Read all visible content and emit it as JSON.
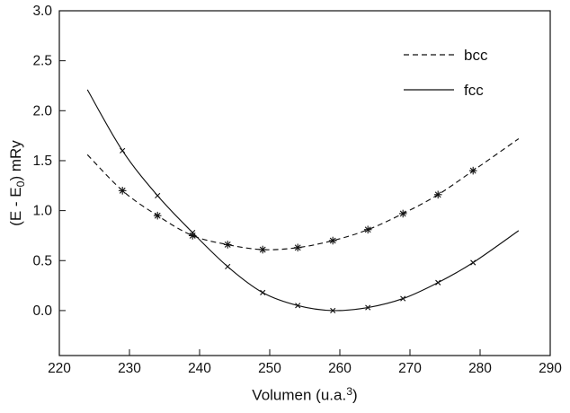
{
  "chart_data": {
    "type": "line",
    "title": "",
    "xlabel_parts": {
      "pre": "Volumen (u.a.",
      "sup": "3",
      "post": ")"
    },
    "ylabel_parts": {
      "pre": "(E - E",
      "sub": "0",
      "post": ") mRy"
    },
    "x_axis": {
      "min": 220,
      "max": 290,
      "ticks": [
        220,
        230,
        240,
        250,
        260,
        270,
        280,
        290
      ]
    },
    "y_axis": {
      "min": -0.45,
      "max": 3.0,
      "ticks": [
        0.0,
        0.5,
        1.0,
        1.5,
        2.0,
        2.5,
        3.0
      ]
    },
    "grid": false,
    "legend": {
      "position": "top-right",
      "entries": [
        "bcc",
        "fcc"
      ]
    },
    "series": [
      {
        "name": "bcc",
        "line": "dashed",
        "marker": "asterisk",
        "color": "#111111",
        "curve_start": [
          224.0,
          1.56
        ],
        "points": [
          [
            229,
            1.2
          ],
          [
            234,
            0.95
          ],
          [
            239,
            0.75
          ],
          [
            244,
            0.66
          ],
          [
            249,
            0.61
          ],
          [
            254,
            0.63
          ],
          [
            259,
            0.7
          ],
          [
            264,
            0.81
          ],
          [
            269,
            0.97
          ],
          [
            274,
            1.16
          ],
          [
            279,
            1.4
          ]
        ],
        "curve_end": [
          285.5,
          1.72
        ]
      },
      {
        "name": "fcc",
        "line": "solid",
        "marker": "x",
        "color": "#111111",
        "curve_start": [
          224.0,
          2.21
        ],
        "points": [
          [
            229,
            1.6
          ],
          [
            234,
            1.15
          ],
          [
            239,
            0.78
          ],
          [
            244,
            0.44
          ],
          [
            249,
            0.18
          ],
          [
            254,
            0.05
          ],
          [
            259,
            0.0
          ],
          [
            264,
            0.03
          ],
          [
            269,
            0.12
          ],
          [
            274,
            0.28
          ],
          [
            279,
            0.48
          ]
        ],
        "curve_end": [
          285.5,
          0.8
        ]
      }
    ]
  }
}
